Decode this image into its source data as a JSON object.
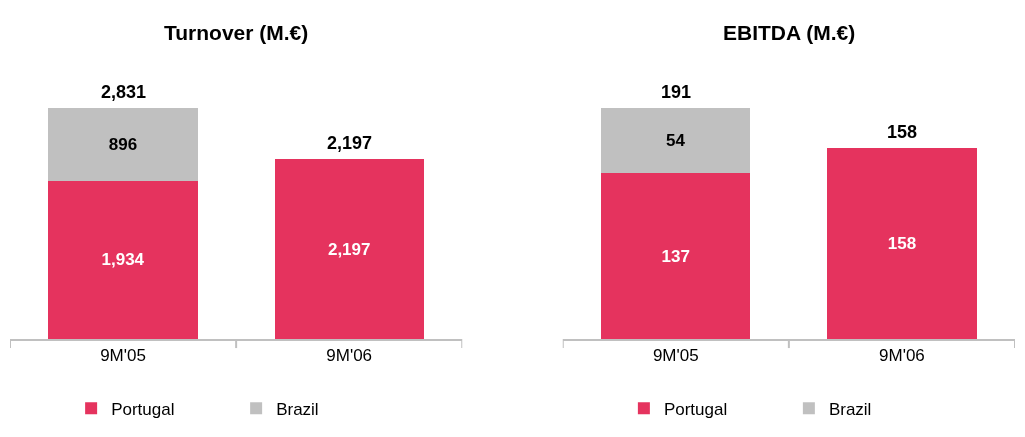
{
  "chart_data": [
    {
      "type": "bar",
      "title": "Turnover (M.€)",
      "categories": [
        "9M'05",
        "9M'06"
      ],
      "stacked": true,
      "totals": [
        "2,831",
        "2,197"
      ],
      "legend": "bottom",
      "series": [
        {
          "name": "Portugal",
          "color": "#e5335e",
          "values": [
            1934,
            2197
          ],
          "value_labels": [
            "1,934",
            "2,197"
          ]
        },
        {
          "name": "Brazil",
          "color": "#c0c0c0",
          "values": [
            896,
            null
          ],
          "value_labels": [
            "896",
            null
          ]
        }
      ]
    },
    {
      "type": "bar",
      "title": "EBITDA (M.€)",
      "categories": [
        "9M'05",
        "9M'06"
      ],
      "stacked": true,
      "totals": [
        "191",
        "158"
      ],
      "legend": "bottom",
      "series": [
        {
          "name": "Portugal",
          "color": "#e5335e",
          "values": [
            137,
            158
          ],
          "value_labels": [
            "137",
            "158"
          ]
        },
        {
          "name": "Brazil",
          "color": "#c0c0c0",
          "values": [
            54,
            null
          ],
          "value_labels": [
            "54",
            null
          ]
        }
      ]
    }
  ]
}
